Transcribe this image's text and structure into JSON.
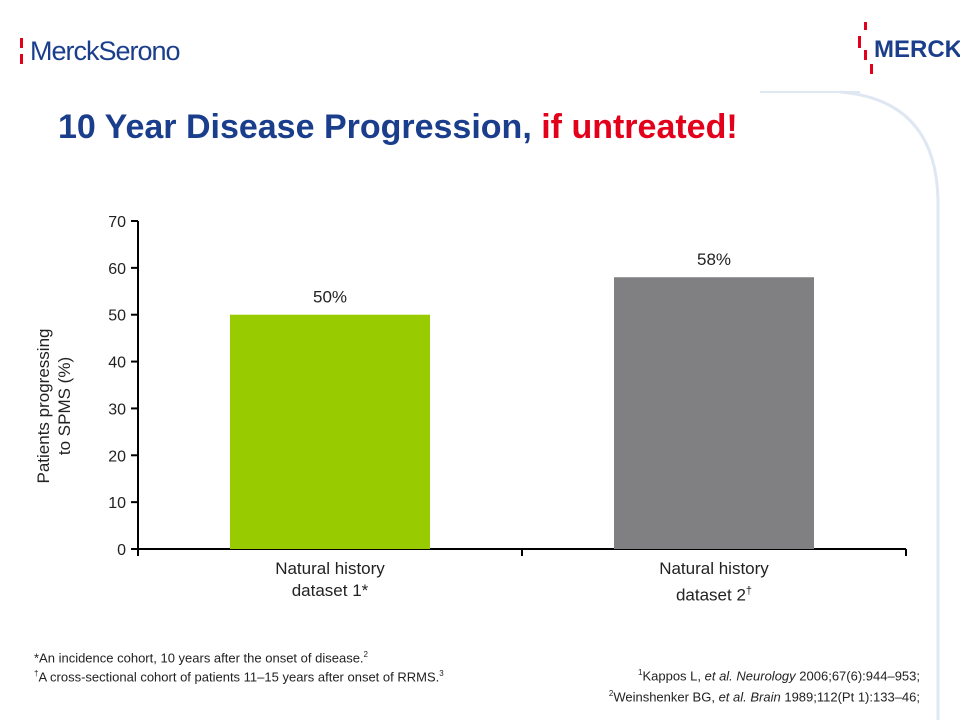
{
  "header": {
    "left_logo_text": "MerckSerono",
    "right_logo_text": "MERCK"
  },
  "title": {
    "main": "10 Year Disease Progression, ",
    "emphasis": "if untreated!"
  },
  "colors": {
    "title_blue": "#1a3e8c",
    "title_red": "#e3001b",
    "bar_green": "#99cc00",
    "bar_grey": "#808083"
  },
  "chart_data": {
    "type": "bar",
    "categories": [
      "Natural history dataset 1*",
      "Natural history dataset 2†"
    ],
    "category_lines": [
      [
        "Natural history",
        "dataset 1*"
      ],
      [
        "Natural history",
        "dataset 2",
        "†"
      ]
    ],
    "values": [
      50,
      58
    ],
    "data_labels": [
      "50%",
      "58%"
    ],
    "bar_colors": [
      "#99cc00",
      "#808083"
    ],
    "ylabel": "Patients progressing to SPMS (%)",
    "ylabel_lines": [
      "Patients progressing",
      "to SPMS (%)"
    ],
    "ylim": [
      0,
      70
    ],
    "yticks": [
      0,
      10,
      20,
      30,
      40,
      50,
      60,
      70
    ],
    "grid": false,
    "legend": "none"
  },
  "footnotes": {
    "left_1_text": "*An incidence cohort, 10 years after the onset of disease.",
    "left_1_sup": "2",
    "left_2_dagger": "†",
    "left_2_text": "A cross-sectional cohort of patients 11–15 years after onset of RRMS.",
    "left_2_sup": "3",
    "right_1_sup": "1",
    "right_1_pre": "Kappos L, ",
    "right_1_ital": "et al. Neurology",
    "right_1_post": " 2006;67(6):944–953;",
    "right_2_sup": "2",
    "right_2_pre": "Weinshenker BG, ",
    "right_2_ital": "et al. Brain",
    "right_2_post": " 1989;112(Pt 1):133–46;"
  }
}
